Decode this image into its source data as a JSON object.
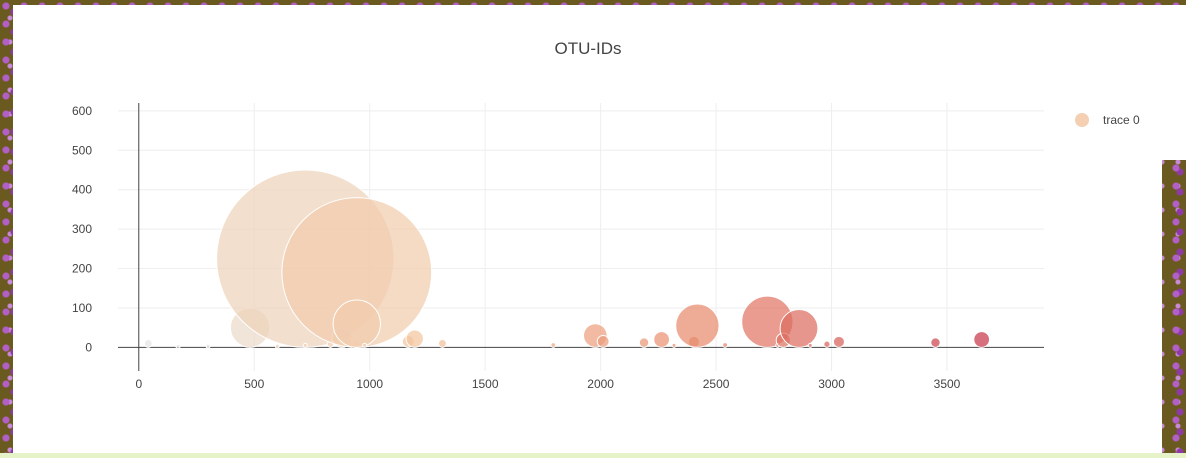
{
  "chart_data": {
    "type": "scatter",
    "title": "OTU-IDs",
    "xlabel": "",
    "ylabel": "",
    "xlim": [
      -90,
      3920
    ],
    "ylim": [
      -60,
      620
    ],
    "x_ticks": [
      0,
      500,
      1000,
      1500,
      2000,
      2500,
      3000,
      3500
    ],
    "y_ticks": [
      0,
      100,
      200,
      300,
      400,
      500,
      600
    ],
    "grid": true,
    "legend": {
      "position": "top-right",
      "entries": [
        "trace 0"
      ]
    },
    "colorscale": [
      "#e6e6e6",
      "#f4c49c",
      "#e8896c",
      "#c8384a"
    ],
    "series": [
      {
        "name": "trace 0",
        "points": [
          {
            "x": 41,
            "y": 10,
            "size": 10
          },
          {
            "x": 170,
            "y": 2,
            "size": 3
          },
          {
            "x": 300,
            "y": 3,
            "size": 4
          },
          {
            "x": 482,
            "y": 50,
            "size": 50
          },
          {
            "x": 600,
            "y": 3,
            "size": 4
          },
          {
            "x": 721,
            "y": 225,
            "size": 225
          },
          {
            "x": 721,
            "y": 5,
            "size": 5
          },
          {
            "x": 830,
            "y": 8,
            "size": 8
          },
          {
            "x": 880,
            "y": 25,
            "size": 25
          },
          {
            "x": 920,
            "y": 5,
            "size": 5
          },
          {
            "x": 940,
            "y": 10,
            "size": 10
          },
          {
            "x": 944,
            "y": 190,
            "size": 190
          },
          {
            "x": 944,
            "y": 60,
            "size": 60
          },
          {
            "x": 978,
            "y": 5,
            "size": 5
          },
          {
            "x": 1167,
            "y": 15,
            "size": 15
          },
          {
            "x": 1195,
            "y": 22,
            "size": 22
          },
          {
            "x": 1315,
            "y": 10,
            "size": 10
          },
          {
            "x": 1795,
            "y": 6,
            "size": 6
          },
          {
            "x": 1977,
            "y": 30,
            "size": 30
          },
          {
            "x": 2011,
            "y": 15,
            "size": 15
          },
          {
            "x": 2188,
            "y": 12,
            "size": 12
          },
          {
            "x": 2264,
            "y": 20,
            "size": 20
          },
          {
            "x": 2318,
            "y": 5,
            "size": 5
          },
          {
            "x": 2404,
            "y": 14,
            "size": 14
          },
          {
            "x": 2419,
            "y": 55,
            "size": 55
          },
          {
            "x": 2539,
            "y": 6,
            "size": 6
          },
          {
            "x": 2722,
            "y": 65,
            "size": 65
          },
          {
            "x": 2767,
            "y": 5,
            "size": 5
          },
          {
            "x": 2791,
            "y": 18,
            "size": 18
          },
          {
            "x": 2859,
            "y": 48,
            "size": 48
          },
          {
            "x": 2908,
            "y": 5,
            "size": 5
          },
          {
            "x": 2980,
            "y": 8,
            "size": 8
          },
          {
            "x": 3032,
            "y": 14,
            "size": 14
          },
          {
            "x": 3450,
            "y": 12,
            "size": 12
          },
          {
            "x": 3650,
            "y": 20,
            "size": 20
          }
        ]
      }
    ]
  }
}
